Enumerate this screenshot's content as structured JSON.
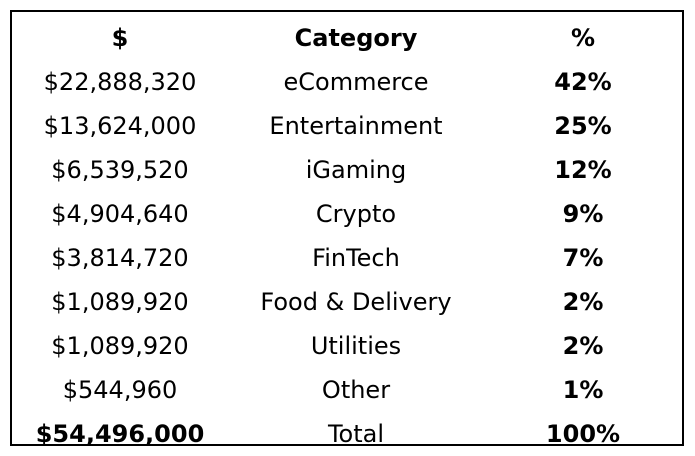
{
  "table": {
    "headers": {
      "amount": "$",
      "category": "Category",
      "percent": "%"
    },
    "rows": [
      {
        "amount": "$22,888,320",
        "category": "eCommerce",
        "percent": "42%"
      },
      {
        "amount": "$13,624,000",
        "category": "Entertainment",
        "percent": "25%"
      },
      {
        "amount": "$6,539,520",
        "category": "iGaming",
        "percent": "12%"
      },
      {
        "amount": "$4,904,640",
        "category": "Crypto",
        "percent": "9%"
      },
      {
        "amount": "$3,814,720",
        "category": "FinTech",
        "percent": "7%"
      },
      {
        "amount": "$1,089,920",
        "category": "Food & Delivery",
        "percent": "2%"
      },
      {
        "amount": "$1,089,920",
        "category": "Utilities",
        "percent": "2%"
      },
      {
        "amount": "$544,960",
        "category": "Other",
        "percent": "1%"
      }
    ],
    "total": {
      "amount": "$54,496,000",
      "category": "Total",
      "percent": "100%"
    }
  }
}
